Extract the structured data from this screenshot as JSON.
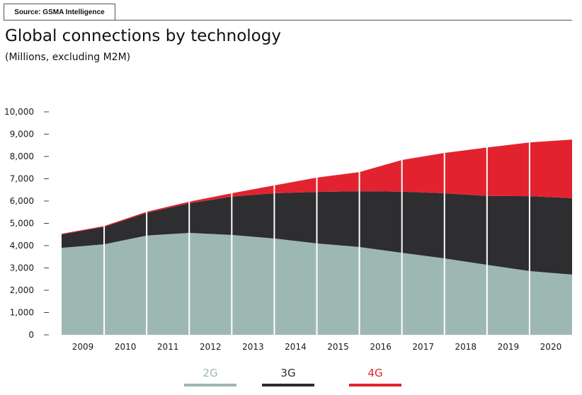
{
  "source": "Source: GSMA Intelligence",
  "title": "Global connections by technology",
  "subtitle": "(Millions, excluding M2M)",
  "chart_data": {
    "type": "area",
    "stacked": true,
    "title": "Global connections by technology",
    "subtitle": "(Millions, excluding M2M)",
    "xlabel": "",
    "ylabel": "",
    "categories": [
      "2009",
      "2010",
      "2011",
      "2012",
      "2013",
      "2014",
      "2015",
      "2016",
      "2017",
      "2018",
      "2019",
      "2020"
    ],
    "x_note": "values sampled at band boundaries: start of 2009 through end of 2020 (13 points)",
    "boundaries": [
      "2009 start",
      "2009/2010",
      "2010/2011",
      "2011/2012",
      "2012/2013",
      "2013/2014",
      "2014/2015",
      "2015/2016",
      "2016/2017",
      "2017/2018",
      "2018/2019",
      "2019/2020",
      "2020 end"
    ],
    "series": [
      {
        "name": "2G",
        "color": "#9db8b3",
        "values": [
          3900,
          4060,
          4450,
          4570,
          4480,
          4320,
          4100,
          3940,
          3680,
          3430,
          3140,
          2860,
          2700
        ]
      },
      {
        "name": "3G",
        "color": "#2e2d30",
        "values": [
          600,
          780,
          1020,
          1330,
          1720,
          2030,
          2310,
          2500,
          2740,
          2920,
          3090,
          3360,
          3430
        ]
      },
      {
        "name": "4G",
        "color": "#e2232f",
        "values": [
          30,
          40,
          50,
          70,
          150,
          350,
          640,
          860,
          1420,
          1810,
          2170,
          2410,
          2630
        ]
      }
    ],
    "yticks": [
      "0",
      "1,000",
      "2,000",
      "3,000",
      "4,000",
      "5,000",
      "6,000",
      "7,000",
      "8,000",
      "9,000",
      "10,000"
    ],
    "ylim": [
      0,
      10000
    ],
    "grid": false,
    "legend": {
      "position": "bottom-center",
      "entries": [
        "2G",
        "3G",
        "4G"
      ]
    }
  }
}
